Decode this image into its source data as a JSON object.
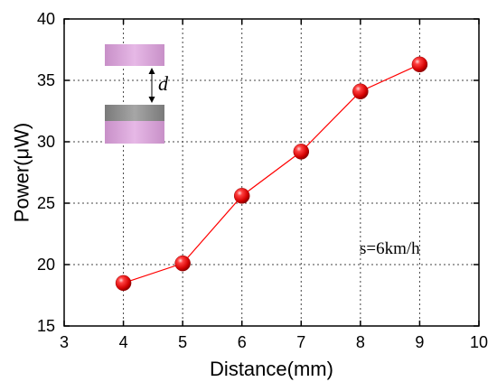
{
  "chart_data": {
    "type": "line",
    "xlabel": "Distance(mm)",
    "ylabel": "Power(μW)",
    "xlim": [
      3,
      10
    ],
    "ylim": [
      15,
      40
    ],
    "xticks": [
      3,
      4,
      5,
      6,
      7,
      8,
      9,
      10
    ],
    "yticks": [
      15,
      20,
      25,
      30,
      35,
      40
    ],
    "grid": true,
    "grid_style": "dotted",
    "series": [
      {
        "x": [
          4,
          5,
          6,
          7,
          8,
          9
        ],
        "y": [
          18.5,
          20.1,
          25.6,
          29.2,
          34.1,
          36.3
        ],
        "color": "#ff0000",
        "marker": "red-sphere"
      }
    ],
    "annotations": {
      "speed_label": "s=6km/h",
      "gap_label": "d"
    },
    "inset": {
      "description": "two-plates-gap-icon",
      "top_plate_color": "#d9a6d9",
      "bottom_plate_colors": [
        "#8c8c8c",
        "#d9a6d9"
      ]
    }
  }
}
